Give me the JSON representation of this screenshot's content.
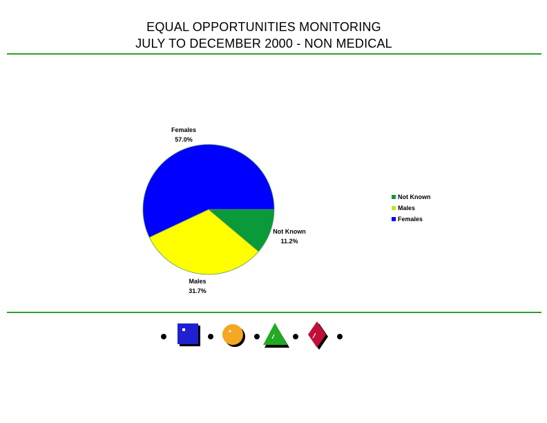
{
  "title": {
    "line1": "EQUAL OPPORTUNITIES MONITORING",
    "line2": "JULY TO DECEMBER 2000 - NON MEDICAL"
  },
  "chart_data": {
    "type": "pie",
    "slices": [
      {
        "label": "Not Known",
        "value": 11.2,
        "value_label": "11.2%",
        "color": "#0a9a3a"
      },
      {
        "label": "Males",
        "value": 31.7,
        "value_label": "31.7%",
        "color": "#ffff00"
      },
      {
        "label": "Females",
        "value": 57.0,
        "value_label": "57.0%",
        "color": "#0000ff"
      }
    ],
    "legend": {
      "placement": "right",
      "entries": [
        "Not Known",
        "Males",
        "Females"
      ]
    }
  },
  "colors": {
    "rule": "#2ca02c",
    "square": "#2020d0",
    "circle": "#f5a623",
    "triangle": "#22aa22",
    "diamond": "#c0103a"
  },
  "decor_icons": [
    "dot",
    "blue-square-icon",
    "dot",
    "orange-circle-icon",
    "dot",
    "green-triangle-icon",
    "dot",
    "red-diamond-icon",
    "dot"
  ]
}
